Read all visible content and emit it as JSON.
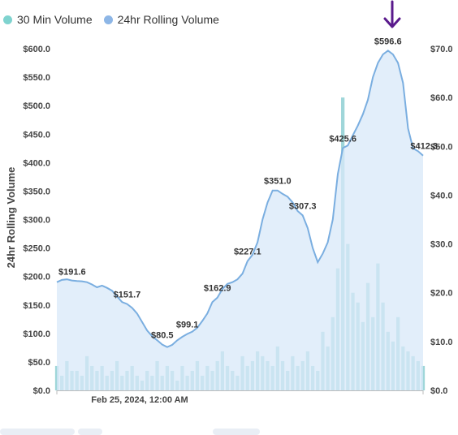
{
  "legend": {
    "items": [
      {
        "label": "30 Min Volume",
        "color": "#7fd3cf"
      },
      {
        "label": "24hr Rolling Volume",
        "color": "#8db6e6"
      }
    ]
  },
  "colors": {
    "area_fill": "#d8e8f8",
    "area_line": "#7aaee0",
    "bar_fill": "#9fd6d9",
    "arrow": "#5a1a8c",
    "axis_text": "#444444"
  },
  "chart_data": {
    "type": "area",
    "ylabel": "24hr Rolling Volume",
    "xlabel": "",
    "x_tick_labels": [
      "Feb 25, 2024, 12:00 AM"
    ],
    "y_left": {
      "ylim": [
        0,
        600
      ],
      "ticks": [
        "$0.0",
        "$50.0",
        "$100.0",
        "$150.0",
        "$200.0",
        "$250.0",
        "$300.0",
        "$350.0",
        "$400.0",
        "$450.0",
        "$500.0",
        "$550.0",
        "$600.0"
      ]
    },
    "y_right": {
      "ylim": [
        0,
        70
      ],
      "ticks": [
        "$0.0",
        "$10.0",
        "$20.0",
        "$30.0",
        "$40.0",
        "$50.0",
        "$60.0",
        "$70.0"
      ]
    },
    "series": [
      {
        "name": "24hr Rolling Volume",
        "axis": "left",
        "values": [
          190,
          194,
          195,
          193,
          192,
          191.6,
          190,
          186,
          181,
          184,
          180,
          175,
          165,
          155,
          151.7,
          145,
          135,
          120,
          105,
          95,
          88,
          80.5,
          76,
          80,
          88,
          94,
          99.1,
          103,
          110,
          122,
          135,
          155,
          162.9,
          178,
          187,
          190,
          195,
          205,
          227.1,
          238,
          260,
          300,
          330,
          351,
          351.0,
          345,
          340,
          330,
          315,
          307.3,
          285,
          250,
          225,
          240,
          260,
          300,
          380,
          425.6,
          430,
          448,
          465,
          485,
          510,
          550,
          575,
          590,
          596.6,
          590,
          575,
          540,
          460,
          425,
          420,
          412.3
        ]
      },
      {
        "name": "30 Min Volume",
        "axis": "right",
        "note": "",
        "values": [
          5,
          3,
          6,
          4,
          4,
          3,
          7,
          5,
          4,
          5,
          3,
          4,
          6,
          3,
          4,
          5,
          3,
          2,
          4,
          3,
          6,
          3,
          5,
          4,
          2,
          5,
          3,
          4,
          6,
          3,
          5,
          4,
          6,
          8,
          5,
          4,
          3,
          7,
          5,
          6,
          8,
          7,
          6,
          5,
          9,
          6,
          4,
          7,
          5,
          6,
          8,
          5,
          4,
          12,
          9,
          15,
          25,
          60,
          30,
          20,
          18,
          14,
          22,
          15,
          26,
          18,
          12,
          10,
          15,
          9,
          8,
          7,
          6,
          5
        ]
      }
    ],
    "data_labels": [
      {
        "index": 5,
        "text": "$191.6"
      },
      {
        "index": 14,
        "text": "$151.7"
      },
      {
        "index": 21,
        "text": "$80.5"
      },
      {
        "index": 26,
        "text": "$99.1"
      },
      {
        "index": 32,
        "text": "$162.9"
      },
      {
        "index": 38,
        "text": "$227.1"
      },
      {
        "index": 44,
        "text": "$351.0"
      },
      {
        "index": 49,
        "text": "$307.3"
      },
      {
        "index": 57,
        "text": "$425.6"
      },
      {
        "index": 66,
        "text": "$596.6"
      },
      {
        "index": 73,
        "text": "$412.3"
      }
    ],
    "grid": false,
    "legend_position": "top-left"
  }
}
